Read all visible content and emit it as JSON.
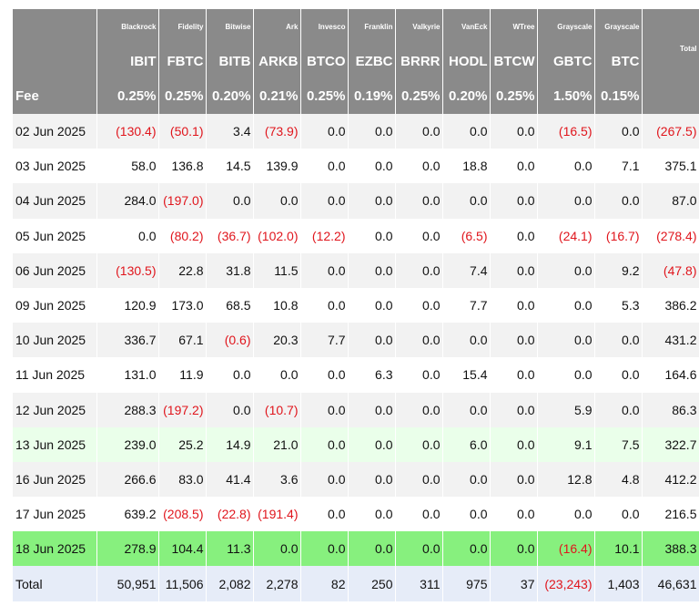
{
  "header": {
    "issuers": [
      "Blackrock",
      "Fidelity",
      "Bitwise",
      "Ark",
      "Invesco",
      "Franklin",
      "Valkyrie",
      "VanEck",
      "WTree",
      "Grayscale",
      "Grayscale"
    ],
    "total_label": "Total",
    "tickers": [
      "IBIT",
      "FBTC",
      "BITB",
      "ARKB",
      "BTCO",
      "EZBC",
      "BRRR",
      "HODL",
      "BTCW",
      "GBTC",
      "BTC"
    ],
    "fee_label": "Fee",
    "fees": [
      "0.25%",
      "0.25%",
      "0.20%",
      "0.21%",
      "0.25%",
      "0.19%",
      "0.25%",
      "0.20%",
      "0.25%",
      "1.50%",
      "0.15%"
    ]
  },
  "rows": [
    {
      "date": "02 Jun 2025",
      "style": "zebra",
      "cells": [
        "(130.4)",
        "(50.1)",
        "3.4",
        "(73.9)",
        "0.0",
        "0.0",
        "0.0",
        "0.0",
        "0.0",
        "(16.5)",
        "0.0",
        "(267.5)"
      ]
    },
    {
      "date": "03 Jun 2025",
      "style": "plain",
      "cells": [
        "58.0",
        "136.8",
        "14.5",
        "139.9",
        "0.0",
        "0.0",
        "0.0",
        "18.8",
        "0.0",
        "0.0",
        "7.1",
        "375.1"
      ]
    },
    {
      "date": "04 Jun 2025",
      "style": "zebra",
      "cells": [
        "284.0",
        "(197.0)",
        "0.0",
        "0.0",
        "0.0",
        "0.0",
        "0.0",
        "0.0",
        "0.0",
        "0.0",
        "0.0",
        "87.0"
      ]
    },
    {
      "date": "05 Jun 2025",
      "style": "plain",
      "cells": [
        "0.0",
        "(80.2)",
        "(36.7)",
        "(102.0)",
        "(12.2)",
        "0.0",
        "0.0",
        "(6.5)",
        "0.0",
        "(24.1)",
        "(16.7)",
        "(278.4)"
      ]
    },
    {
      "date": "06 Jun 2025",
      "style": "zebra",
      "cells": [
        "(130.5)",
        "22.8",
        "31.8",
        "11.5",
        "0.0",
        "0.0",
        "0.0",
        "7.4",
        "0.0",
        "0.0",
        "9.2",
        "(47.8)"
      ]
    },
    {
      "date": "09 Jun 2025",
      "style": "plain",
      "cells": [
        "120.9",
        "173.0",
        "68.5",
        "10.8",
        "0.0",
        "0.0",
        "0.0",
        "7.7",
        "0.0",
        "0.0",
        "5.3",
        "386.2"
      ]
    },
    {
      "date": "10 Jun 2025",
      "style": "zebra",
      "cells": [
        "336.7",
        "67.1",
        "(0.6)",
        "20.3",
        "7.7",
        "0.0",
        "0.0",
        "0.0",
        "0.0",
        "0.0",
        "0.0",
        "431.2"
      ]
    },
    {
      "date": "11 Jun 2025",
      "style": "plain",
      "cells": [
        "131.0",
        "11.9",
        "0.0",
        "0.0",
        "0.0",
        "6.3",
        "0.0",
        "15.4",
        "0.0",
        "0.0",
        "0.0",
        "164.6"
      ]
    },
    {
      "date": "12 Jun 2025",
      "style": "zebra",
      "cells": [
        "288.3",
        "(197.2)",
        "0.0",
        "(10.7)",
        "0.0",
        "0.0",
        "0.0",
        "0.0",
        "0.0",
        "5.9",
        "0.0",
        "86.3"
      ]
    },
    {
      "date": "13 Jun 2025",
      "style": "light-green",
      "cells": [
        "239.0",
        "25.2",
        "14.9",
        "21.0",
        "0.0",
        "0.0",
        "0.0",
        "6.0",
        "0.0",
        "9.1",
        "7.5",
        "322.7"
      ]
    },
    {
      "date": "16 Jun 2025",
      "style": "zebra",
      "cells": [
        "266.6",
        "83.0",
        "41.4",
        "3.6",
        "0.0",
        "0.0",
        "0.0",
        "0.0",
        "0.0",
        "12.8",
        "4.8",
        "412.2"
      ]
    },
    {
      "date": "17 Jun 2025",
      "style": "plain",
      "cells": [
        "639.2",
        "(208.5)",
        "(22.8)",
        "(191.4)",
        "0.0",
        "0.0",
        "0.0",
        "0.0",
        "0.0",
        "0.0",
        "0.0",
        "216.5"
      ]
    },
    {
      "date": "18 Jun 2025",
      "style": "green",
      "cells": [
        "278.9",
        "104.4",
        "11.3",
        "0.0",
        "0.0",
        "0.0",
        "0.0",
        "0.0",
        "0.0",
        "(16.4)",
        "10.1",
        "388.3"
      ]
    }
  ],
  "totals": {
    "label": "Total",
    "cells": [
      "50,951",
      "11,506",
      "2,082",
      "2,278",
      "82",
      "250",
      "311",
      "975",
      "37",
      "(23,243)",
      "1,403",
      "46,631"
    ]
  },
  "colors": {
    "header_bg": "#8a8a8a",
    "negative": "#e0151c",
    "zebra": "#f2f2f2",
    "highlight_light_green": "#eaffea",
    "highlight_green": "#87f07e",
    "total_row": "#e6ecf8"
  }
}
